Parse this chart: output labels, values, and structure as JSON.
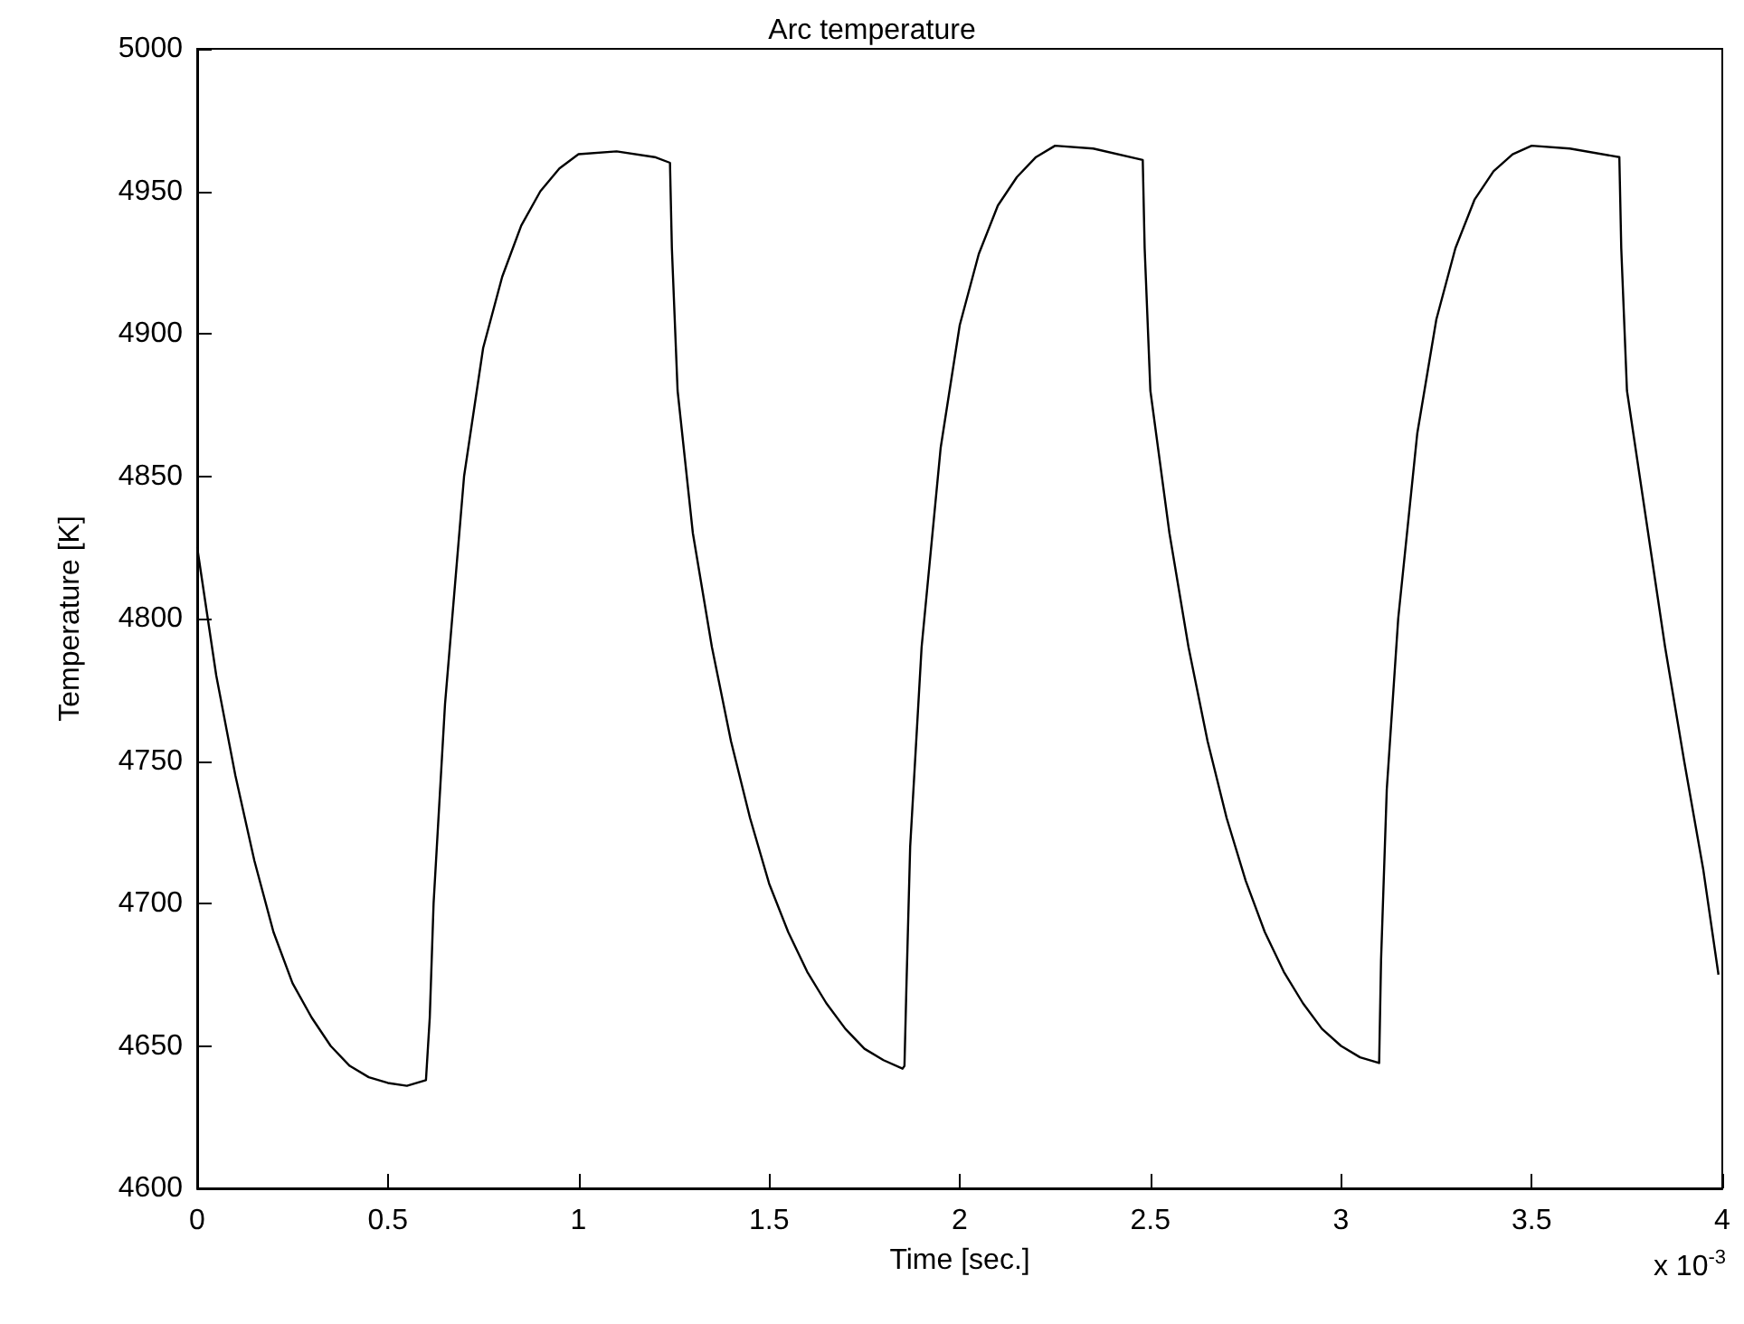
{
  "chart_data": {
    "type": "line",
    "title": "Arc temperature",
    "xlabel": "Time [sec.]",
    "ylabel": "Temperature [K]",
    "annotations": [
      "x 10$^{-3}$"
    ],
    "xlim": [
      0,
      4
    ],
    "xticks": [
      0,
      0.5,
      1,
      1.5,
      2,
      2.5,
      3,
      3.5,
      4
    ],
    "ylim": [
      4600,
      5000
    ],
    "yticks": [
      4600,
      4650,
      4700,
      4750,
      4800,
      4850,
      4900,
      4950,
      5000
    ],
    "grid": false,
    "marker": "none",
    "line_style": "solid",
    "series": [
      {
        "color": "#000000",
        "x": [
          0,
          0.05,
          0.1,
          0.15,
          0.2,
          0.25,
          0.3,
          0.35,
          0.4,
          0.45,
          0.5,
          0.55,
          0.6,
          0.61,
          0.62,
          0.65,
          0.7,
          0.75,
          0.8,
          0.85,
          0.9,
          0.95,
          1.0,
          1.1,
          1.2,
          1.24,
          1.245,
          1.26,
          1.3,
          1.35,
          1.4,
          1.45,
          1.5,
          1.55,
          1.6,
          1.65,
          1.7,
          1.75,
          1.8,
          1.85,
          1.855,
          1.86,
          1.87,
          1.9,
          1.95,
          2.0,
          2.05,
          2.1,
          2.15,
          2.2,
          2.25,
          2.35,
          2.48,
          2.485,
          2.5,
          2.55,
          2.6,
          2.65,
          2.7,
          2.75,
          2.8,
          2.85,
          2.9,
          2.95,
          3.0,
          3.05,
          3.1,
          3.105,
          3.12,
          3.15,
          3.2,
          3.25,
          3.3,
          3.35,
          3.4,
          3.45,
          3.5,
          3.6,
          3.73,
          3.735,
          3.75,
          3.8,
          3.85,
          3.9,
          3.95,
          3.99
        ],
        "values": [
          4825,
          4780,
          4745,
          4715,
          4690,
          4672,
          4660,
          4650,
          4643,
          4639,
          4637,
          4636,
          4638,
          4660,
          4700,
          4770,
          4850,
          4895,
          4920,
          4938,
          4950,
          4958,
          4963,
          4964,
          4962,
          4960,
          4930,
          4880,
          4830,
          4790,
          4757,
          4730,
          4707,
          4690,
          4676,
          4665,
          4656,
          4649,
          4645,
          4642,
          4643,
          4670,
          4720,
          4790,
          4860,
          4903,
          4928,
          4945,
          4955,
          4962,
          4966,
          4965,
          4961,
          4930,
          4880,
          4830,
          4790,
          4757,
          4730,
          4708,
          4690,
          4676,
          4665,
          4656,
          4650,
          4646,
          4644,
          4680,
          4740,
          4800,
          4865,
          4905,
          4930,
          4947,
          4957,
          4963,
          4966,
          4965,
          4962,
          4930,
          4880,
          4835,
          4790,
          4750,
          4712,
          4675
        ]
      }
    ]
  }
}
